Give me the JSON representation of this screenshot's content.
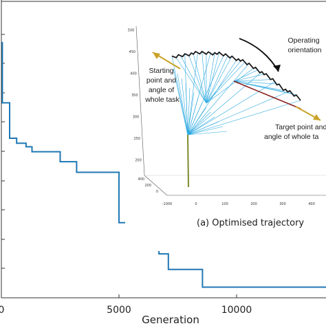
{
  "chart_data": {
    "type": "line",
    "xlabel": "Generation",
    "ylabel": "",
    "xlim": [
      0,
      15000
    ],
    "x_ticks": [
      "0",
      "5000",
      "10000"
    ],
    "series": [
      {
        "color": "#1f77b4",
        "points": [
          [
            0,
            360
          ],
          [
            40,
            360
          ],
          [
            40,
            275
          ],
          [
            350,
            275
          ],
          [
            350,
            225
          ],
          [
            650,
            225
          ],
          [
            650,
            218
          ],
          [
            1050,
            218
          ],
          [
            1050,
            213
          ],
          [
            1300,
            213
          ],
          [
            1300,
            206
          ],
          [
            2500,
            206
          ],
          [
            2500,
            192
          ],
          [
            3200,
            192
          ],
          [
            3200,
            177
          ],
          [
            5000,
            177
          ],
          [
            5000,
            106
          ],
          [
            6350,
            106
          ],
          [
            6350,
            84
          ],
          [
            6700,
            84
          ],
          [
            6700,
            62
          ],
          [
            7100,
            62
          ],
          [
            7100,
            40
          ],
          [
            8550,
            40
          ],
          [
            8550,
            15
          ],
          [
            15000,
            15
          ]
        ]
      }
    ]
  },
  "inset": {
    "caption": "(a) Optimised trajectory",
    "label_start": [
      "Starting",
      "point and",
      "angle of",
      "whole task"
    ],
    "label_operating": [
      "Operating",
      "orientation"
    ],
    "label_target": [
      "Target point and",
      "angle of whole ta"
    ],
    "y_ticks": [
      "500",
      "450",
      "400",
      "350",
      "300",
      "250",
      "200"
    ],
    "depth_ticks": [
      "400",
      "200",
      "0"
    ],
    "x_ticks": [
      "-1000",
      "0",
      "100",
      "200",
      "300",
      "400",
      "500",
      "600"
    ],
    "colors": {
      "fan": "#29a8e0",
      "outline": "#1a1a1a",
      "base": "#7a8c2e",
      "arm": "#8b2020",
      "arrow": "#c9a227"
    }
  }
}
